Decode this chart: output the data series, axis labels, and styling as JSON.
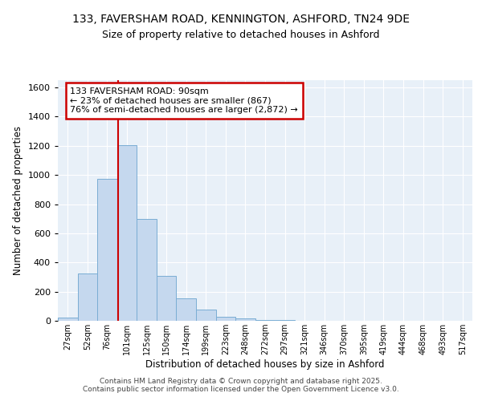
{
  "title_line1": "133, FAVERSHAM ROAD, KENNINGTON, ASHFORD, TN24 9DE",
  "title_line2": "Size of property relative to detached houses in Ashford",
  "xlabel": "Distribution of detached houses by size in Ashford",
  "ylabel": "Number of detached properties",
  "bar_color": "#c5d8ee",
  "bar_edge_color": "#7aadd4",
  "background_color": "#e8f0f8",
  "grid_color": "#ffffff",
  "bin_labels": [
    "27sqm",
    "52sqm",
    "76sqm",
    "101sqm",
    "125sqm",
    "150sqm",
    "174sqm",
    "199sqm",
    "223sqm",
    "248sqm",
    "272sqm",
    "297sqm",
    "321sqm",
    "346sqm",
    "370sqm",
    "395sqm",
    "419sqm",
    "444sqm",
    "468sqm",
    "493sqm",
    "517sqm"
  ],
  "bar_heights": [
    22,
    325,
    975,
    1205,
    700,
    310,
    155,
    75,
    25,
    18,
    5,
    3,
    2,
    1,
    1,
    0,
    0,
    0,
    0,
    0,
    0
  ],
  "ylim": [
    0,
    1650
  ],
  "yticks": [
    0,
    200,
    400,
    600,
    800,
    1000,
    1200,
    1400,
    1600
  ],
  "property_bin_index": 2.56,
  "annotation_text": "133 FAVERSHAM ROAD: 90sqm\n← 23% of detached houses are smaller (867)\n76% of semi-detached houses are larger (2,872) →",
  "annotation_box_color": "#ffffff",
  "annotation_border_color": "#cc0000",
  "red_line_color": "#cc0000",
  "footer_text": "Contains HM Land Registry data © Crown copyright and database right 2025.\nContains public sector information licensed under the Open Government Licence v3.0."
}
